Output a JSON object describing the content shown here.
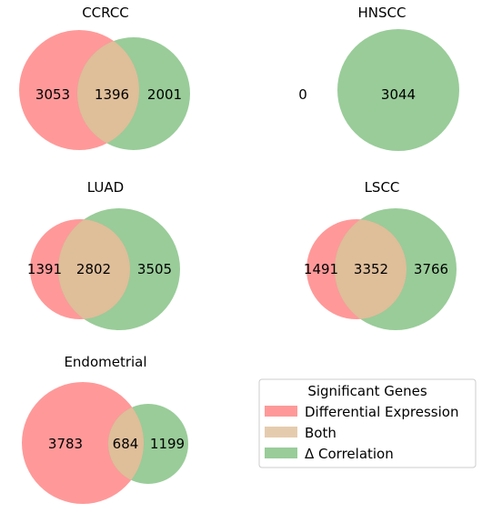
{
  "colors": {
    "differential": "#ff7f7f",
    "correlation": "#7fbf7f",
    "overlap": "#dfbe9a"
  },
  "panels": [
    {
      "title": "CCRCC",
      "differential_only": "3053",
      "both": "1396",
      "correlation_only": "2001"
    },
    {
      "title": "HNSCC",
      "differential_only": "0",
      "correlation_only": "3044"
    },
    {
      "title": "LUAD",
      "differential_only": "1391",
      "both": "2802",
      "correlation_only": "3505"
    },
    {
      "title": "LSCC",
      "differential_only": "1491",
      "both": "3352",
      "correlation_only": "3766"
    },
    {
      "title": "Endometrial",
      "differential_only": "3783",
      "both": "684",
      "correlation_only": "1199"
    }
  ],
  "legend": {
    "title": "Significant Genes",
    "items": [
      {
        "label": "Differential Expression",
        "color_key": "differential"
      },
      {
        "label": "Both",
        "color_key": "overlap"
      },
      {
        "label": "Δ Correlation",
        "color_key": "correlation"
      }
    ]
  }
}
